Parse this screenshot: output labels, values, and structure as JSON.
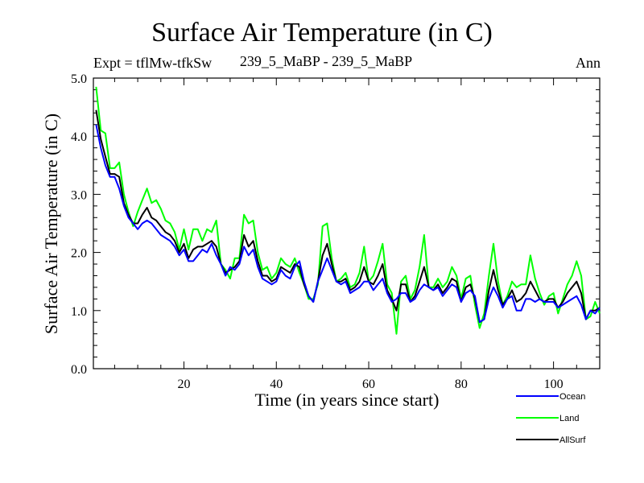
{
  "chart_data": {
    "type": "line",
    "title": "Surface Air Temperature (in C)",
    "subtitle_left": "Expt = tflMw-tfkSw",
    "subtitle_center": "239_5_MaBP - 239_5_MaBP",
    "subtitle_right": "Ann",
    "xlabel": "Time (in years since start)",
    "ylabel": "Surface Air Temperature (in C)",
    "xlim": [
      1,
      110
    ],
    "ylim": [
      0.0,
      5.0
    ],
    "x_ticks": [
      20,
      40,
      60,
      80,
      100
    ],
    "x_tick_labels": [
      "20",
      "40",
      "60",
      "80",
      "100"
    ],
    "y_ticks": [
      0.0,
      1.0,
      2.0,
      3.0,
      4.0,
      5.0
    ],
    "y_tick_labels": [
      "0.0",
      "1.0",
      "2.0",
      "3.0",
      "4.0",
      "5.0"
    ],
    "grid": false,
    "legend_position": "bottom-right",
    "x": [
      1,
      2,
      3,
      4,
      5,
      6,
      7,
      8,
      9,
      10,
      11,
      12,
      13,
      14,
      15,
      16,
      17,
      18,
      19,
      20,
      21,
      22,
      23,
      24,
      25,
      26,
      27,
      28,
      29,
      30,
      31,
      32,
      33,
      34,
      35,
      36,
      37,
      38,
      39,
      40,
      41,
      42,
      43,
      44,
      45,
      46,
      47,
      48,
      49,
      50,
      51,
      52,
      53,
      54,
      55,
      56,
      57,
      58,
      59,
      60,
      61,
      62,
      63,
      64,
      65,
      66,
      67,
      68,
      69,
      70,
      71,
      72,
      73,
      74,
      75,
      76,
      77,
      78,
      79,
      80,
      81,
      82,
      83,
      84,
      85,
      86,
      87,
      88,
      89,
      90,
      91,
      92,
      93,
      94,
      95,
      96,
      97,
      98,
      99,
      100,
      101,
      102,
      103,
      104,
      105,
      106,
      107,
      108,
      109,
      110
    ],
    "series": [
      {
        "name": "Ocean",
        "color": "#0000ff",
        "values": [
          4.2,
          3.8,
          3.5,
          3.3,
          3.3,
          3.1,
          2.8,
          2.6,
          2.5,
          2.4,
          2.5,
          2.55,
          2.5,
          2.4,
          2.3,
          2.25,
          2.2,
          2.1,
          1.95,
          2.05,
          1.85,
          1.85,
          1.95,
          2.05,
          2.0,
          2.15,
          1.95,
          1.8,
          1.6,
          1.75,
          1.7,
          1.8,
          2.1,
          1.95,
          2.05,
          1.75,
          1.55,
          1.5,
          1.45,
          1.5,
          1.7,
          1.6,
          1.55,
          1.75,
          1.85,
          1.5,
          1.25,
          1.15,
          1.5,
          1.7,
          1.9,
          1.7,
          1.5,
          1.45,
          1.5,
          1.3,
          1.35,
          1.4,
          1.5,
          1.5,
          1.35,
          1.45,
          1.55,
          1.3,
          1.15,
          1.2,
          1.3,
          1.3,
          1.15,
          1.2,
          1.35,
          1.45,
          1.4,
          1.35,
          1.4,
          1.25,
          1.35,
          1.45,
          1.4,
          1.15,
          1.3,
          1.35,
          1.25,
          0.8,
          0.85,
          1.2,
          1.4,
          1.25,
          1.05,
          1.2,
          1.25,
          1.0,
          1.0,
          1.2,
          1.2,
          1.15,
          1.2,
          1.15,
          1.15,
          1.15,
          1.05,
          1.1,
          1.15,
          1.2,
          1.25,
          1.1,
          0.85,
          1.0,
          0.95,
          1.05
        ]
      },
      {
        "name": "Land",
        "color": "#00ff00",
        "values": [
          4.85,
          4.1,
          4.05,
          3.45,
          3.45,
          3.55,
          3.0,
          2.7,
          2.45,
          2.7,
          2.9,
          3.1,
          2.85,
          2.9,
          2.75,
          2.55,
          2.5,
          2.35,
          2.05,
          2.4,
          2.05,
          2.4,
          2.4,
          2.2,
          2.4,
          2.35,
          2.55,
          1.8,
          1.7,
          1.55,
          1.9,
          1.9,
          2.65,
          2.5,
          2.55,
          2.0,
          1.7,
          1.75,
          1.55,
          1.65,
          1.9,
          1.8,
          1.75,
          1.9,
          1.65,
          1.45,
          1.2,
          1.2,
          1.45,
          2.45,
          2.5,
          1.9,
          1.5,
          1.55,
          1.65,
          1.4,
          1.45,
          1.65,
          2.1,
          1.5,
          1.6,
          1.85,
          2.15,
          1.45,
          1.3,
          0.6,
          1.5,
          1.6,
          1.2,
          1.35,
          1.75,
          2.3,
          1.4,
          1.4,
          1.55,
          1.4,
          1.5,
          1.75,
          1.6,
          1.2,
          1.55,
          1.6,
          1.1,
          0.7,
          0.95,
          1.6,
          2.15,
          1.5,
          1.1,
          1.25,
          1.5,
          1.4,
          1.45,
          1.45,
          1.95,
          1.55,
          1.3,
          1.1,
          1.25,
          1.3,
          0.95,
          1.2,
          1.45,
          1.6,
          1.85,
          1.6,
          0.85,
          0.9,
          1.15,
          0.95
        ]
      },
      {
        "name": "AllSurf",
        "color": "#000000",
        "values": [
          4.45,
          3.95,
          3.65,
          3.35,
          3.35,
          3.3,
          2.85,
          2.65,
          2.5,
          2.5,
          2.65,
          2.77,
          2.6,
          2.55,
          2.45,
          2.35,
          2.3,
          2.2,
          2.0,
          2.15,
          1.9,
          2.05,
          2.1,
          2.1,
          2.15,
          2.2,
          2.1,
          1.8,
          1.65,
          1.7,
          1.75,
          1.85,
          2.3,
          2.1,
          2.2,
          1.85,
          1.6,
          1.6,
          1.5,
          1.55,
          1.75,
          1.7,
          1.65,
          1.8,
          1.75,
          1.45,
          1.25,
          1.15,
          1.5,
          1.95,
          2.15,
          1.8,
          1.5,
          1.5,
          1.55,
          1.35,
          1.4,
          1.5,
          1.75,
          1.5,
          1.45,
          1.6,
          1.8,
          1.35,
          1.2,
          1.0,
          1.45,
          1.45,
          1.15,
          1.25,
          1.5,
          1.75,
          1.4,
          1.35,
          1.45,
          1.3,
          1.4,
          1.55,
          1.5,
          1.15,
          1.4,
          1.45,
          1.2,
          0.8,
          0.85,
          1.35,
          1.7,
          1.35,
          1.1,
          1.2,
          1.35,
          1.15,
          1.2,
          1.3,
          1.5,
          1.35,
          1.2,
          1.15,
          1.2,
          1.2,
          1.05,
          1.15,
          1.3,
          1.4,
          1.5,
          1.3,
          0.85,
          1.0,
          1.0,
          1.05
        ]
      }
    ]
  }
}
